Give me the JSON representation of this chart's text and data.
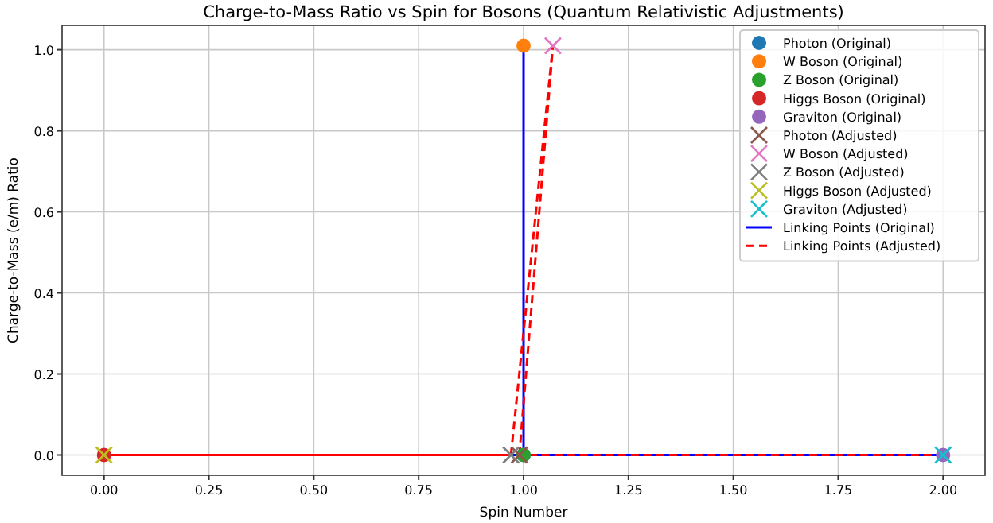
{
  "chart_data": {
    "type": "scatter",
    "title": "Charge-to-Mass Ratio vs Spin for Bosons (Quantum Relativistic Adjustments)",
    "xlabel": "Spin Number",
    "ylabel": "Charge-to-Mass (e/m) Ratio",
    "xlim": [
      -0.1,
      2.1
    ],
    "xticks": [
      {
        "value": 0,
        "label": "0.00"
      },
      {
        "value": 0.25,
        "label": "0.25"
      },
      {
        "value": 0.5,
        "label": "0.50"
      },
      {
        "value": 0.75,
        "label": "0.75"
      },
      {
        "value": 1,
        "label": "1.00"
      },
      {
        "value": 1.25,
        "label": "1.25"
      },
      {
        "value": 1.5,
        "label": "1.50"
      },
      {
        "value": 1.75,
        "label": "1.75"
      },
      {
        "value": 2,
        "label": "2.00"
      }
    ],
    "ylim": [
      -0.05,
      1.06
    ],
    "yticks": [
      {
        "value": 0,
        "label": "0.0"
      },
      {
        "value": 0.2,
        "label": "0.2"
      },
      {
        "value": 0.4,
        "label": "0.4"
      },
      {
        "value": 0.6,
        "label": "0.6"
      },
      {
        "value": 0.8,
        "label": "0.8"
      },
      {
        "value": 1,
        "label": "1.0"
      }
    ],
    "grid": true,
    "legend": "top right",
    "series": [
      {
        "name": "Linking Points (Original)",
        "type": "line",
        "color": "#0000ff",
        "line_style": "solid",
        "x": [
          1,
          1,
          1,
          0,
          2
        ],
        "values": [
          0,
          1.01,
          0,
          0,
          0
        ]
      },
      {
        "name": "Linking Points (Adjusted)",
        "type": "line",
        "color": "#ff0000",
        "line_style": "dashed",
        "x": [
          0.99,
          1.07,
          0.97,
          0,
          2
        ],
        "values": [
          0,
          1.01,
          0,
          0,
          0
        ]
      },
      {
        "name": "Photon (Original)",
        "marker": "circle",
        "color": "#1f77b4",
        "x": [
          1
        ],
        "values": [
          0
        ]
      },
      {
        "name": "W Boson (Original)",
        "marker": "circle",
        "color": "#ff7f0e",
        "x": [
          1
        ],
        "values": [
          1.01
        ]
      },
      {
        "name": "Z Boson (Original)",
        "marker": "circle",
        "color": "#2ca02c",
        "x": [
          1
        ],
        "values": [
          0
        ]
      },
      {
        "name": "Higgs Boson (Original)",
        "marker": "circle",
        "color": "#d62728",
        "x": [
          0
        ],
        "values": [
          0
        ]
      },
      {
        "name": "Graviton (Original)",
        "marker": "circle",
        "color": "#9467bd",
        "x": [
          2
        ],
        "values": [
          0
        ]
      },
      {
        "name": "Photon (Adjusted)",
        "marker": "cross",
        "color": "#8c564b",
        "x": [
          0.99
        ],
        "values": [
          0
        ]
      },
      {
        "name": "W Boson (Adjusted)",
        "marker": "cross",
        "color": "#e377c2",
        "x": [
          1.07
        ],
        "values": [
          1.01
        ]
      },
      {
        "name": "Z Boson (Adjusted)",
        "marker": "cross",
        "color": "#7f7f7f",
        "x": [
          0.97
        ],
        "values": [
          0
        ]
      },
      {
        "name": "Higgs Boson (Adjusted)",
        "marker": "cross",
        "color": "#bcbd22",
        "x": [
          0
        ],
        "values": [
          0
        ]
      },
      {
        "name": "Graviton (Adjusted)",
        "marker": "cross",
        "color": "#17becf",
        "x": [
          2
        ],
        "values": [
          0
        ]
      }
    ]
  }
}
